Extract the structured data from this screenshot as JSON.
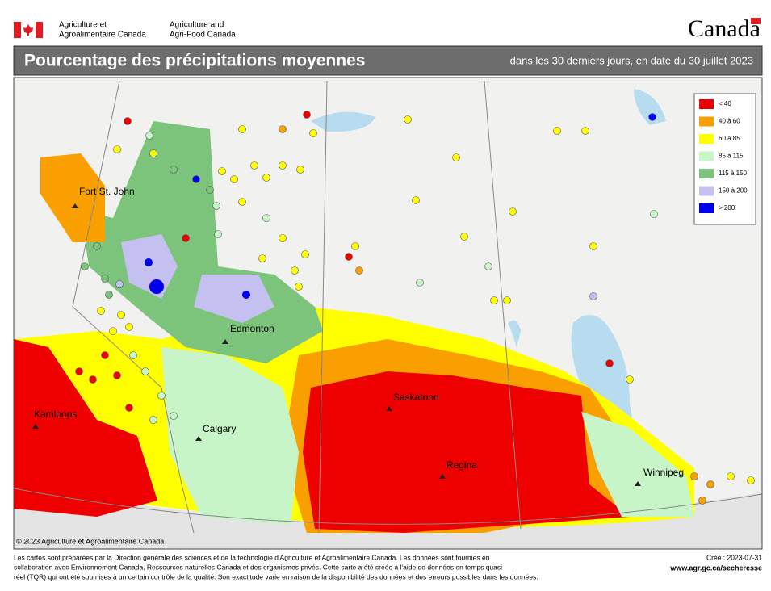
{
  "header": {
    "department_fr": [
      "Agriculture et",
      "Agroalimentaire Canada"
    ],
    "department_en": [
      "Agriculture and",
      "Agri-Food Canada"
    ],
    "wordmark": "Canada"
  },
  "title": "Pourcentage des précipitations moyennes",
  "subtitle": "dans les 30 derniers jours, en date du 30 juillet 2023",
  "legend": {
    "items": [
      {
        "label": "< 40",
        "color": "#ee0000"
      },
      {
        "label": "40 à 60",
        "color": "#f9a000"
      },
      {
        "label": "60 à 85",
        "color": "#ffff00"
      },
      {
        "label": "85 à 115",
        "color": "#c8f5c8"
      },
      {
        "label": "115 à 150",
        "color": "#7cc47c"
      },
      {
        "label": "150 à 200",
        "color": "#c4c0f0"
      },
      {
        "label": "> 200",
        "color": "#0000ee"
      }
    ]
  },
  "cities": [
    "Fort St. John",
    "Edmonton",
    "Kamloops",
    "Calgary",
    "Saskatoon",
    "Regina",
    "Winnipeg"
  ],
  "copyright": "© 2023 Agriculture et Agroalimentaire Canada",
  "footer": {
    "notes": [
      "Les cartes sont préparées par la Direction générale des sciences et de la technologie d'Agriculture et Agroalimentaire Canada. Les données sont fournies en",
      "collaboration avec Environnement Canada, Ressources naturelles Canada et des organismes privés. Cette carte a été créée à l'aide de données en temps quasi",
      "réel (TQR) qui ont été soumises à un certain contrôle de la qualité. Son exactitude varie en raison de la disponibilité des données et des erreurs possibles dans les données."
    ],
    "created": "Créé : 2023-07-31",
    "url": "www.agr.gc.ca/secheresse"
  }
}
